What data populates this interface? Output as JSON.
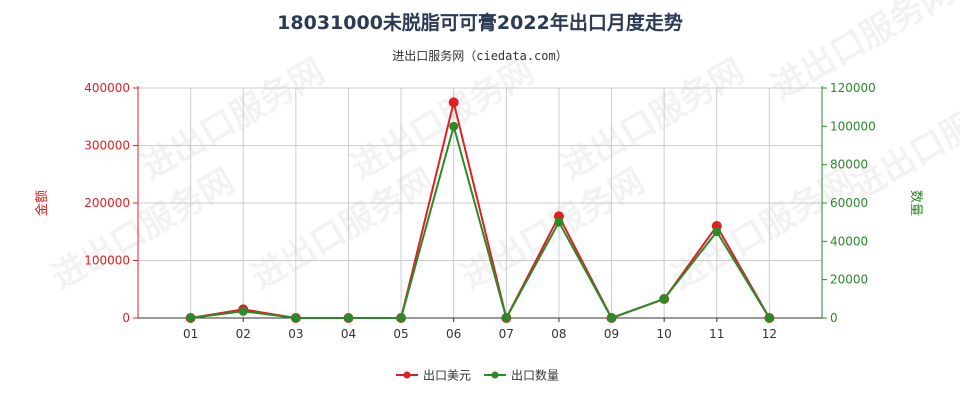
{
  "title": "18031000未脱脂可可膏2022年出口月度走势",
  "subtitle": "进出口服务网（ciedata.com）",
  "watermark": "进出口服务网",
  "colors": {
    "amount": "#e02020",
    "quantity": "#2a8a2a",
    "grid": "#cccccc",
    "axis": "#333333"
  },
  "chart_data": {
    "type": "line",
    "categories": [
      "01",
      "02",
      "03",
      "04",
      "05",
      "06",
      "07",
      "08",
      "09",
      "10",
      "11",
      "12"
    ],
    "series": [
      {
        "name": "出口美元",
        "axis": "left",
        "values": [
          0,
          15000,
          0,
          0,
          0,
          375000,
          0,
          177000,
          0,
          33000,
          160000,
          0
        ]
      },
      {
        "name": "出口数量",
        "axis": "right",
        "values": [
          0,
          3500,
          0,
          0,
          0,
          100000,
          0,
          50000,
          0,
          10000,
          45000,
          0
        ]
      }
    ],
    "y_left": {
      "label": "金额",
      "ylim": [
        0,
        400000
      ],
      "ticks": [
        "0",
        "100000",
        "200000",
        "300000",
        "400000"
      ]
    },
    "y_right": {
      "label": "数量",
      "ylim": [
        0,
        120000
      ],
      "ticks": [
        "0",
        "20000",
        "40000",
        "60000",
        "80000",
        "100000",
        "120000"
      ]
    },
    "grid": true,
    "legend_position": "bottom-center"
  }
}
